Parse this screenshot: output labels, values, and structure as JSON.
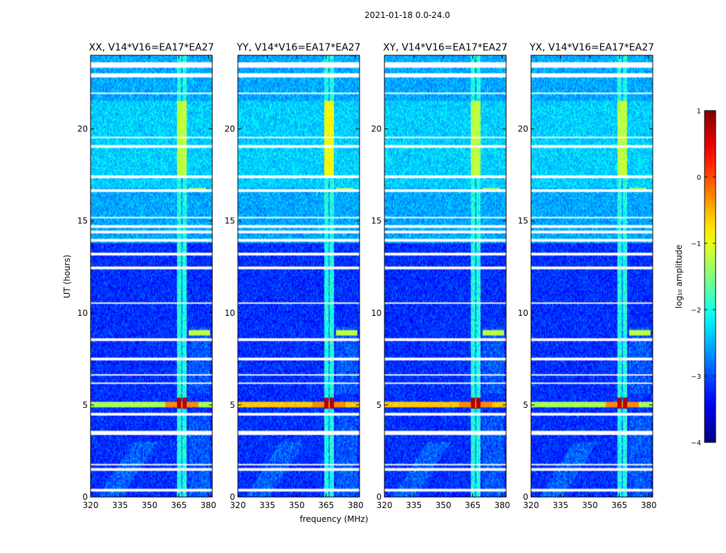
{
  "figure": {
    "suptitle": "2021-01-18 0.0-24.0"
  },
  "colors": {
    "colormap": "jet",
    "gap_color": "#ffffff",
    "axis_color": "#000000"
  },
  "chart_data": {
    "type": "heatmap",
    "suptitle": "2021-01-18 0.0-24.0",
    "xlabel": "frequency (MHz)",
    "ylabel": "UT (hours)",
    "xlim": [
      320,
      382
    ],
    "ylim": [
      0,
      24
    ],
    "xticks": [
      320,
      335,
      350,
      365,
      380
    ],
    "yticks": [
      0,
      5,
      10,
      15,
      20
    ],
    "colorbar": {
      "label": "log₁₀ amplitude",
      "range": [
        -4,
        1
      ],
      "ticks": [
        1,
        0,
        -1,
        -2,
        -3,
        -4
      ],
      "tick_labels": [
        "1",
        "0",
        "−1",
        "−2",
        "−3",
        "−4"
      ]
    },
    "panels": [
      {
        "title": "XX, V14*V16=EA17*EA27",
        "hf_band": "pol_xx",
        "strong_5h_bcast": false,
        "pale_upper_band": false
      },
      {
        "title": "YY, V14*V16=EA17*EA27",
        "hf_band": "pol_yy",
        "strong_5h_bcast": true,
        "pale_upper_band": true
      },
      {
        "title": "XY, V14*V16=EA17*EA27",
        "hf_band": "pol_xy",
        "strong_5h_bcast": true,
        "pale_upper_band": false
      },
      {
        "title": "YX, V14*V16=EA17*EA27",
        "hf_band": "pol_yx",
        "strong_5h_bcast": false,
        "pale_upper_band": false
      }
    ],
    "blanked_time_bands_hours": [
      [
        0.3,
        0.45
      ],
      [
        1.45,
        1.55
      ],
      [
        1.7,
        1.8
      ],
      [
        3.35,
        3.6
      ],
      [
        4.45,
        4.6
      ],
      [
        6.15,
        6.25
      ],
      [
        6.6,
        6.7
      ],
      [
        7.45,
        7.55
      ],
      [
        8.5,
        8.6
      ],
      [
        10.5,
        10.6
      ],
      [
        12.4,
        12.5
      ],
      [
        13.15,
        13.25
      ],
      [
        13.9,
        14.0
      ],
      [
        14.35,
        14.45
      ],
      [
        14.65,
        14.75
      ],
      [
        15.15,
        15.25
      ],
      [
        16.6,
        16.7
      ],
      [
        17.35,
        17.45
      ],
      [
        19.0,
        19.1
      ],
      [
        19.5,
        19.6
      ],
      [
        21.9,
        22.0
      ],
      [
        22.8,
        23.05
      ],
      [
        23.3,
        23.6
      ]
    ],
    "rfi_features": [
      {
        "description": "persistent RFI channels",
        "freq_mhz": [
          364.0,
          369.0
        ],
        "ut_hours": [
          0,
          24
        ],
        "log10_amp": -1.4
      },
      {
        "description": "strong broadcast burst",
        "freq_mhz": [
          364.0,
          369.0
        ],
        "ut_hours": [
          4.8,
          5.4
        ],
        "log10_amp": 0.7
      },
      {
        "description": "broadband band",
        "freq_mhz": [
          320.0,
          382.0
        ],
        "ut_hours": [
          4.85,
          5.15
        ],
        "log10_amp": -1.2
      },
      {
        "description": "intermittent blocks",
        "freq_mhz": [
          370.0,
          381.0
        ],
        "ut_hours": [
          8.8,
          9.1
        ],
        "log10_amp": -1.2
      },
      {
        "description": "intermittent blocks",
        "freq_mhz": [
          370.0,
          381.0
        ],
        "ut_hours": [
          16.6,
          16.8
        ],
        "log10_amp": -1.3
      },
      {
        "description": "elevated daytime band",
        "freq_mhz": [
          364.0,
          369.0
        ],
        "ut_hours": [
          17.5,
          21.5
        ],
        "log10_amp": -1.0
      }
    ]
  }
}
